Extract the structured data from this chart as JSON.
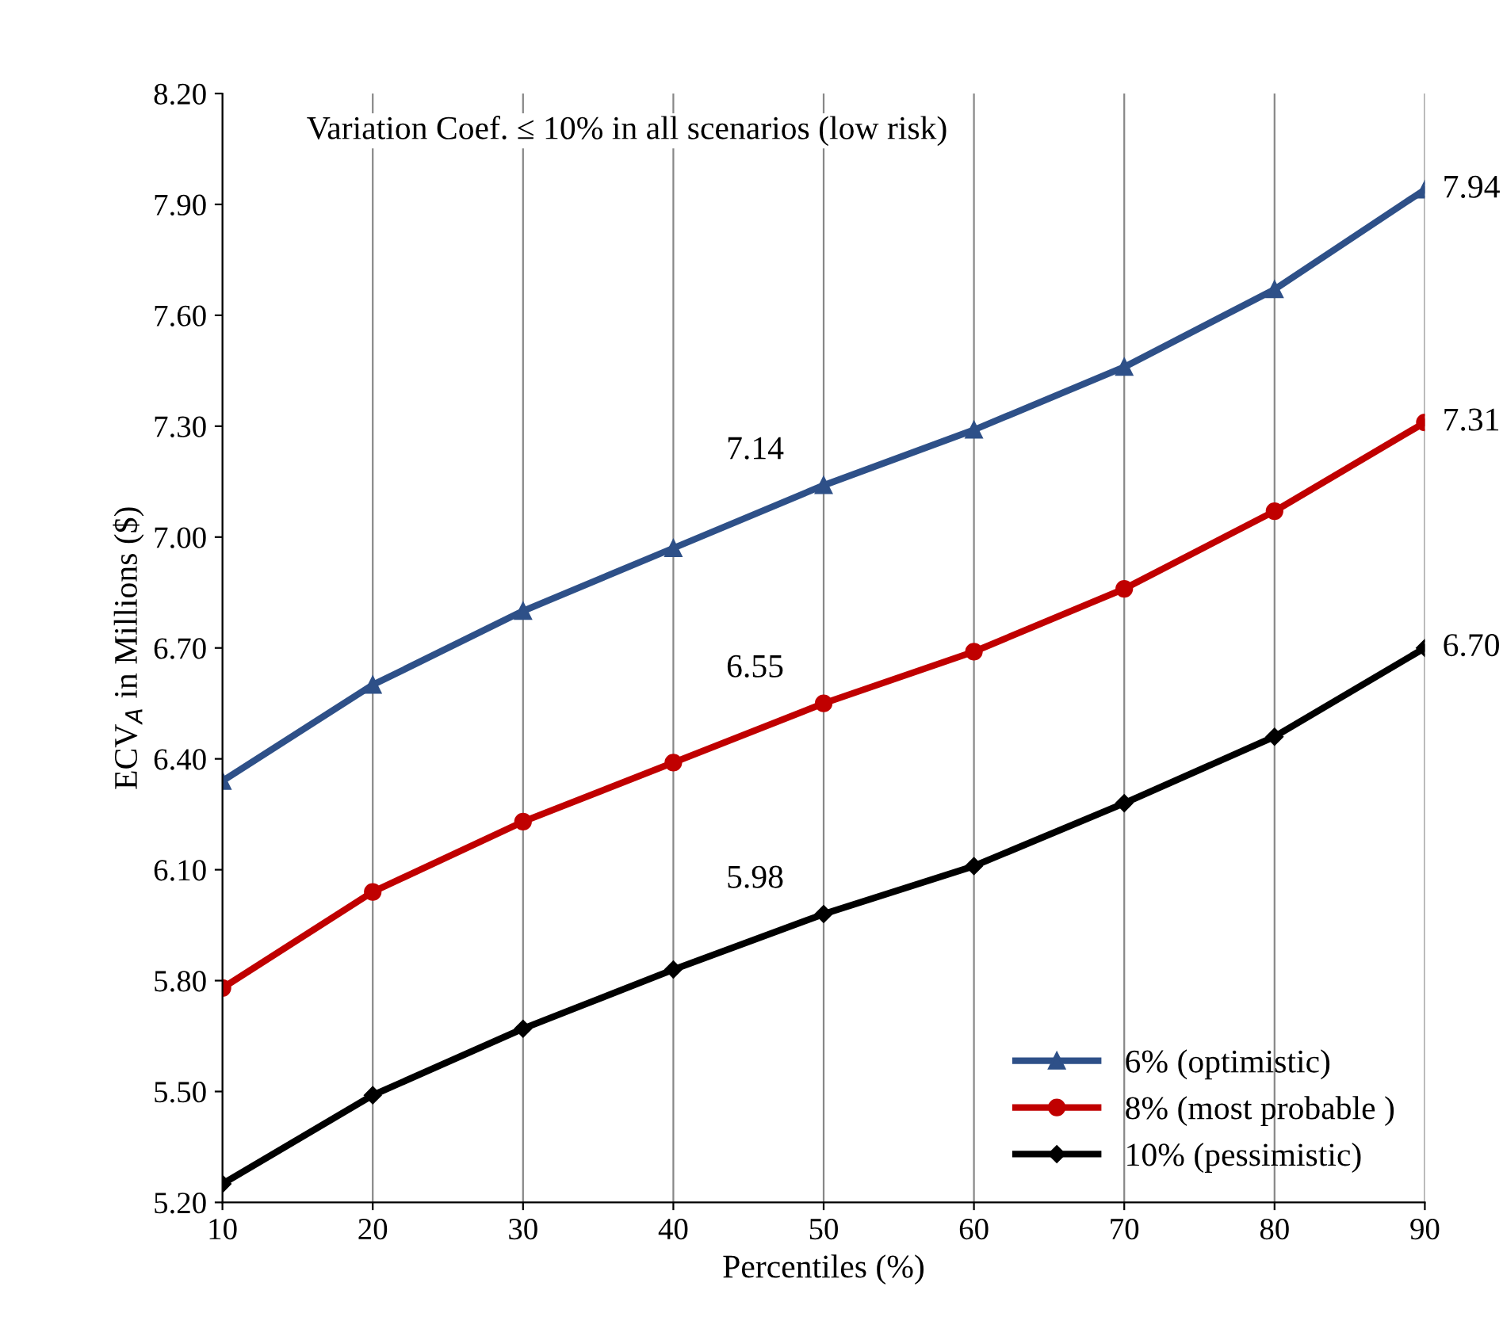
{
  "chart_data": {
    "type": "line",
    "xlabel": "Percentiles (%)",
    "ylabel": "ECV$_{A}$ in Millions ($)",
    "x": [
      10,
      20,
      30,
      40,
      50,
      60,
      70,
      80,
      90
    ],
    "series": [
      {
        "name": "6% (optimistic)",
        "color": "#2e5088",
        "marker": "triangle",
        "values": [
          6.34,
          6.6,
          6.8,
          6.97,
          7.14,
          7.29,
          7.46,
          7.67,
          7.94
        ],
        "value_labels": [
          null,
          null,
          null,
          null,
          "7.14",
          null,
          null,
          null,
          "7.94"
        ]
      },
      {
        "name": "8% (most probable )",
        "color": "#c00000",
        "marker": "circle",
        "values": [
          5.78,
          6.04,
          6.23,
          6.39,
          6.55,
          6.69,
          6.86,
          7.07,
          7.31
        ],
        "value_labels": [
          null,
          null,
          null,
          null,
          "6.55",
          null,
          null,
          null,
          "7.31"
        ]
      },
      {
        "name": "10% (pessimistic)",
        "color": "#000000",
        "marker": "diamond",
        "values": [
          5.25,
          5.49,
          5.67,
          5.83,
          5.98,
          6.11,
          6.28,
          6.46,
          6.7
        ],
        "value_labels": [
          null,
          null,
          null,
          null,
          "5.98",
          null,
          null,
          null,
          "6.70"
        ]
      }
    ],
    "xlim": [
      10,
      90
    ],
    "xticks": [
      10,
      20,
      30,
      40,
      50,
      60,
      70,
      80,
      90
    ],
    "ylim": [
      5.2,
      8.2
    ],
    "yticks": [
      {
        "value": 5.2,
        "label": "5.20"
      },
      {
        "value": 5.5,
        "label": "5.50"
      },
      {
        "value": 5.8,
        "label": "5.80"
      },
      {
        "value": 6.1,
        "label": "6.10"
      },
      {
        "value": 6.4,
        "label": "6.40"
      },
      {
        "value": 6.7,
        "label": "6.70"
      },
      {
        "value": 7.0,
        "label": "7.00"
      },
      {
        "value": 7.3,
        "label": "7.30"
      },
      {
        "value": 7.6,
        "label": "7.60"
      },
      {
        "value": 7.9,
        "label": "7.90"
      },
      {
        "value": 8.2,
        "label": "8.20"
      }
    ],
    "grid": "x",
    "legend": "bottom right",
    "line_style": "solid",
    "annotations": [
      "Variation Coef. ≤ 10% in all scenarios (low risk)"
    ]
  }
}
